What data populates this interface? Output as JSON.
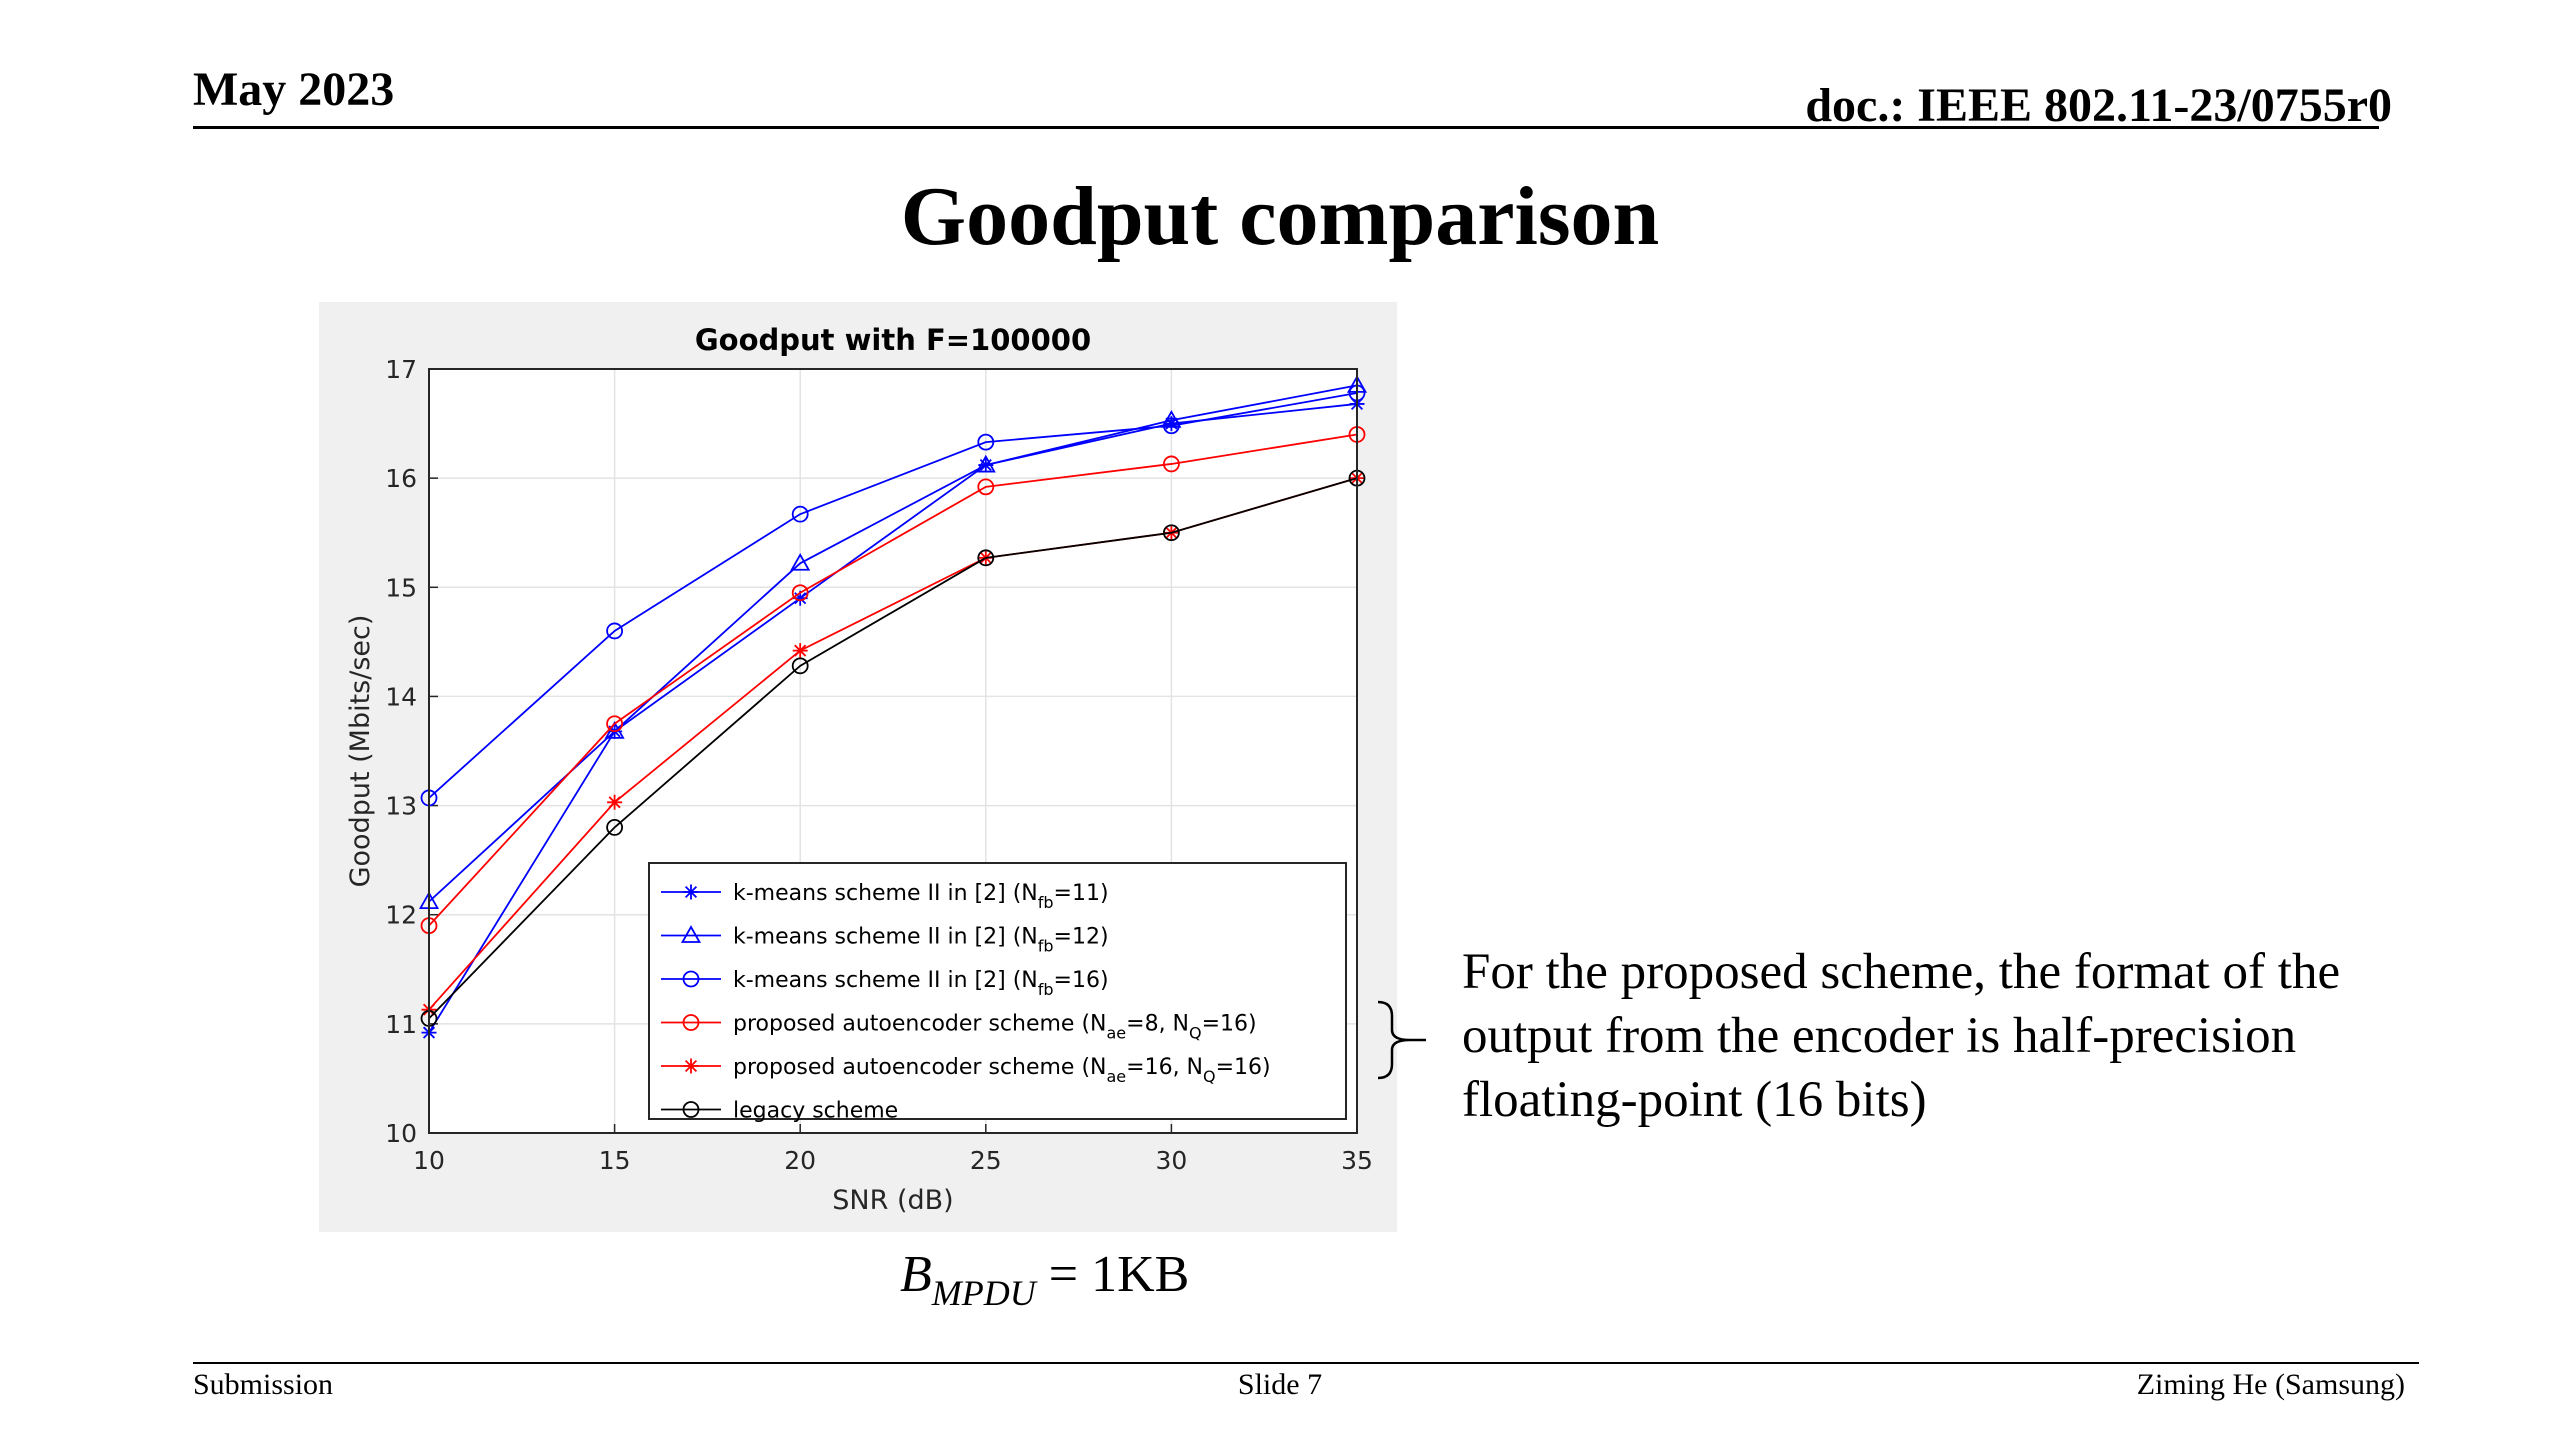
{
  "header": {
    "date": "May 2023",
    "doc_id": "doc.: IEEE 802.11-23/0755r0"
  },
  "slide_title": "Goodput comparison",
  "note": "For the proposed scheme, the format of the output from the encoder is half-precision floating-point (16 bits)",
  "formula": {
    "symbol": "B",
    "subscript": "MPDU",
    "rhs": "= 1KB"
  },
  "footer": {
    "left": "Submission",
    "center": "Slide 7",
    "right": "Ziming He (Samsung)"
  },
  "chart_data": {
    "type": "line",
    "title": "Goodput with F=100000",
    "xlabel": "SNR (dB)",
    "ylabel": "Goodput (Mbits/sec)",
    "xlim": [
      10,
      35
    ],
    "ylim": [
      10,
      17
    ],
    "xticks": [
      10,
      15,
      20,
      25,
      30,
      35
    ],
    "yticks": [
      10,
      11,
      12,
      13,
      14,
      15,
      16,
      17
    ],
    "grid": true,
    "legend_position": "bottom-right",
    "x": [
      10,
      15,
      20,
      25,
      30,
      35
    ],
    "series": [
      {
        "name": "k-means scheme II in [2] (N",
        "sub1": "fb",
        "mid": "=11)",
        "sub2": "",
        "tail": "",
        "color": "#0000ff",
        "marker": "star",
        "values": [
          10.92,
          13.68,
          14.9,
          16.12,
          16.5,
          16.68
        ]
      },
      {
        "name": "k-means scheme II in [2] (N",
        "sub1": "fb",
        "mid": "=12)",
        "sub2": "",
        "tail": "",
        "color": "#0000ff",
        "marker": "triangle",
        "values": [
          12.12,
          13.68,
          15.22,
          16.12,
          16.53,
          16.85
        ]
      },
      {
        "name": "k-means scheme II in [2] (N",
        "sub1": "fb",
        "mid": "=16)",
        "sub2": "",
        "tail": "",
        "color": "#0000ff",
        "marker": "circle",
        "values": [
          13.07,
          14.6,
          15.67,
          16.33,
          16.48,
          16.78
        ]
      },
      {
        "name": "proposed autoencoder scheme (N",
        "sub1": "ae",
        "mid": "=8, N",
        "sub2": "Q",
        "tail": "=16)",
        "color": "#ff0000",
        "marker": "circle",
        "values": [
          11.9,
          13.75,
          14.95,
          15.92,
          16.13,
          16.4
        ]
      },
      {
        "name": "proposed autoencoder scheme (N",
        "sub1": "ae",
        "mid": "=16, N",
        "sub2": "Q",
        "tail": "=16)",
        "color": "#ff0000",
        "marker": "star",
        "values": [
          11.13,
          13.03,
          14.42,
          15.27,
          15.5,
          16.0
        ]
      },
      {
        "name": "legacy scheme",
        "sub1": "",
        "mid": "",
        "sub2": "",
        "tail": "",
        "color": "#000000",
        "marker": "circle",
        "values": [
          11.05,
          12.8,
          14.28,
          15.27,
          15.5,
          16.0
        ]
      }
    ]
  }
}
